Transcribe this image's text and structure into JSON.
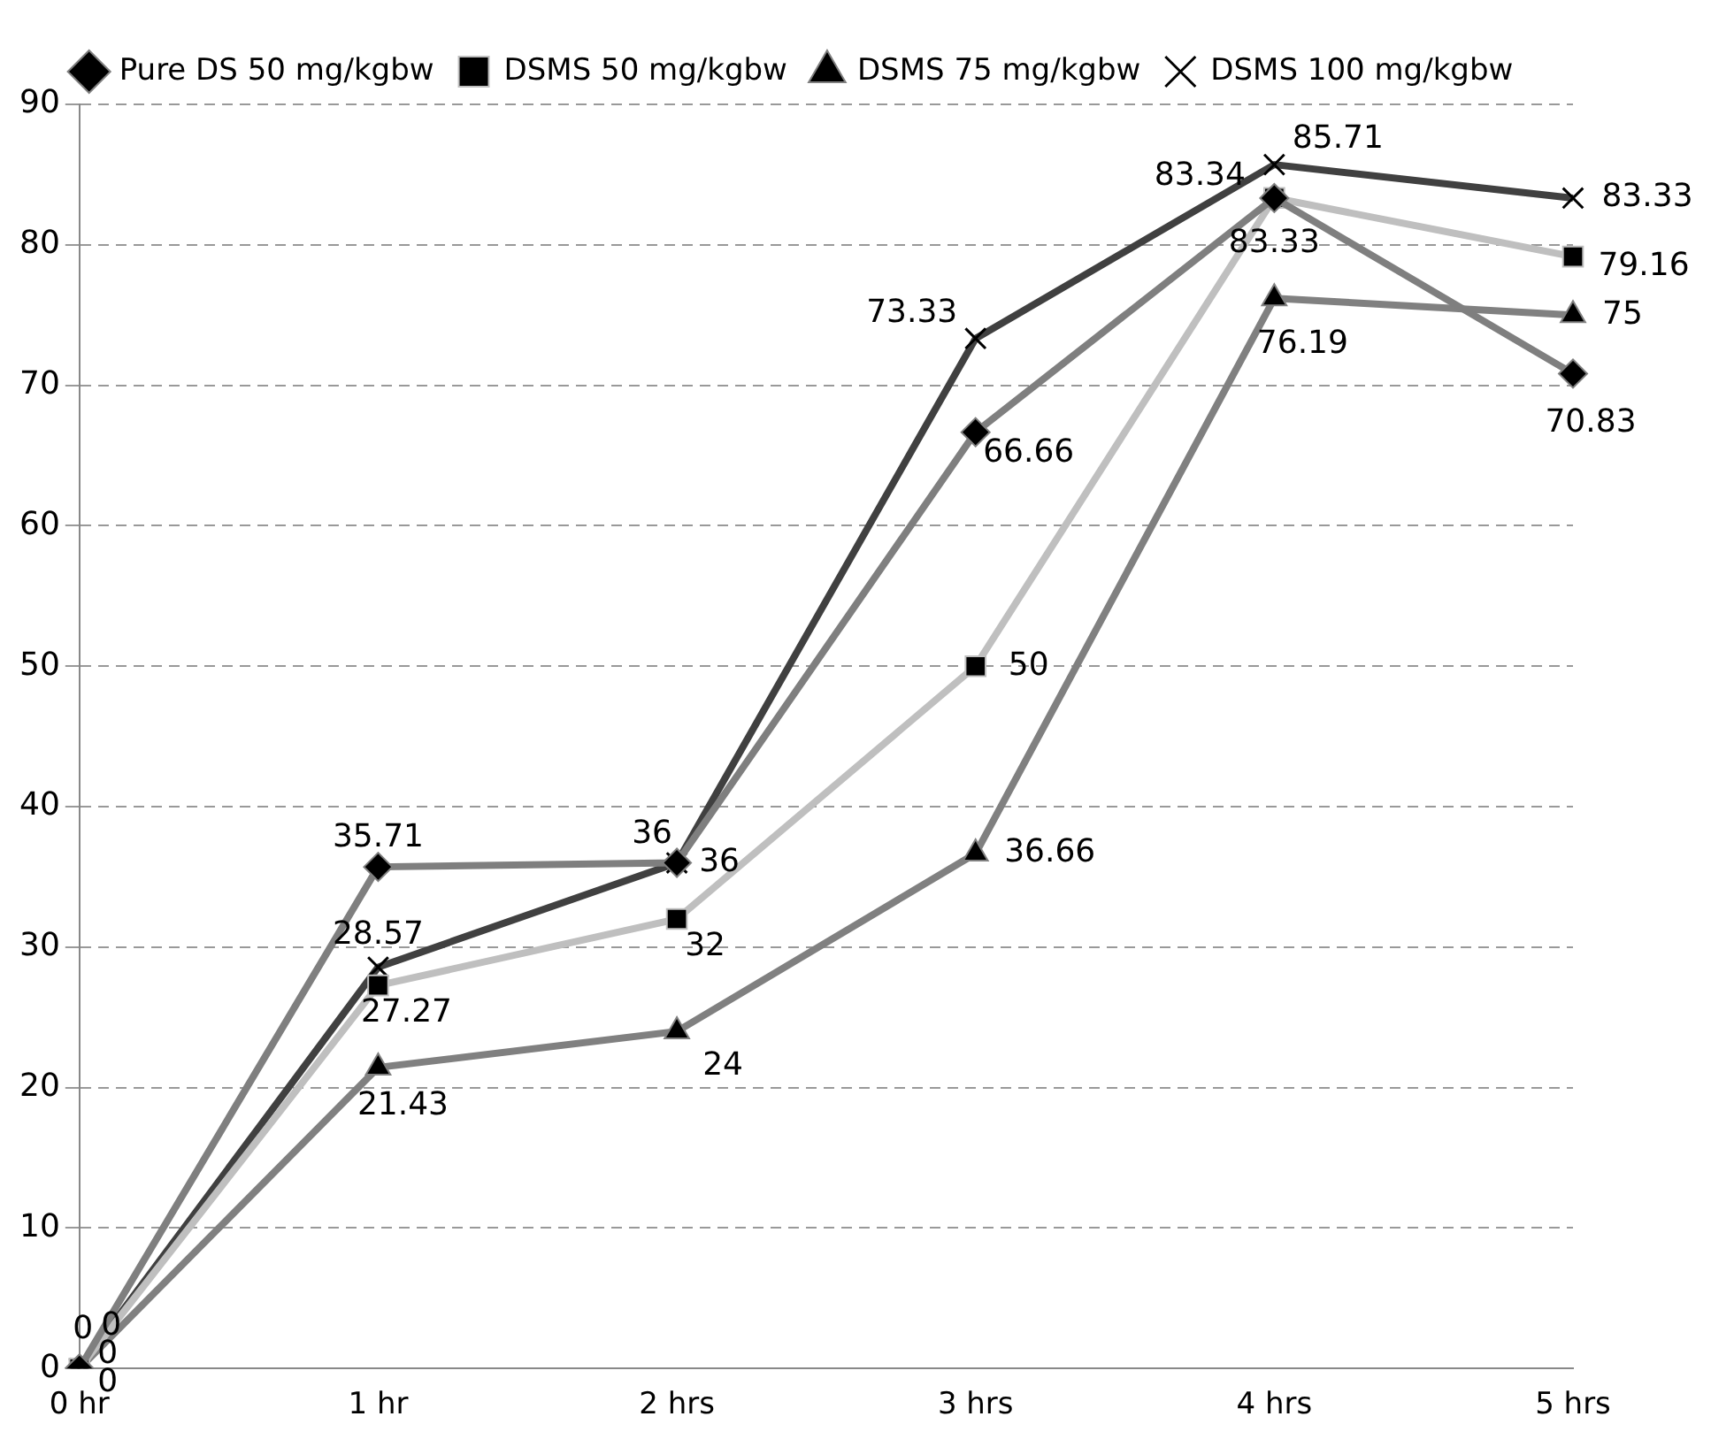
{
  "chart_data": {
    "type": "line",
    "categories": [
      "0 hr",
      "1 hr",
      "2 hrs",
      "3 hrs",
      "4 hrs",
      "5 hrs"
    ],
    "series": [
      {
        "name": "Pure DS 50 mg/kgbw",
        "color": "#7f7f7f",
        "marker": "diamond",
        "values": [
          0,
          35.71,
          36,
          66.66,
          83.33,
          70.83
        ]
      },
      {
        "name": "DSMS 50 mg/kgbw",
        "color": "#bfbfbf",
        "marker": "square",
        "values": [
          0,
          27.27,
          32,
          50,
          83.34,
          79.16
        ]
      },
      {
        "name": "DSMS 75 mg/kgbw",
        "color": "#808080",
        "marker": "triangle",
        "values": [
          0,
          21.43,
          24,
          36.66,
          76.19,
          75
        ]
      },
      {
        "name": "DSMS 100 mg/kgbw",
        "color": "#404040",
        "marker": "cross",
        "values": [
          0,
          28.57,
          36,
          73.33,
          85.71,
          83.33
        ]
      }
    ],
    "ylim": [
      0,
      90
    ],
    "yticks": [
      0,
      10,
      20,
      30,
      40,
      50,
      60,
      70,
      80,
      90
    ],
    "grid": "y",
    "legend": "top",
    "line_style": "solid",
    "data_labels": true
  }
}
